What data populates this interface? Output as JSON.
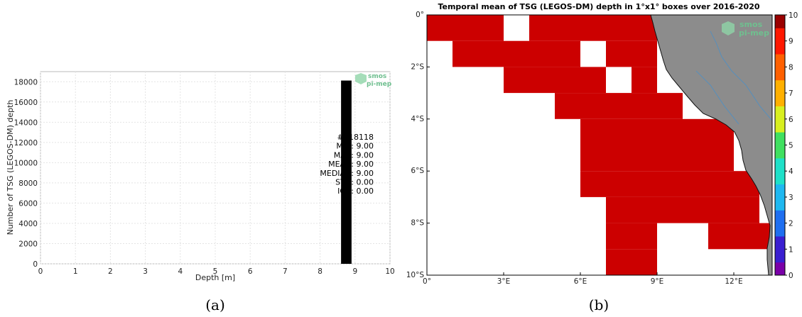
{
  "captions": {
    "a": "(a)",
    "b": "(b)"
  },
  "watermark": {
    "line1": "smos",
    "line2": "pi-mep",
    "color": "#6fbf8f"
  },
  "chart_data": [
    {
      "type": "bar",
      "xlabel": "Depth [m]",
      "ylabel": "Number of TSG (LEGOS-DM) depth",
      "xlim": [
        0,
        10
      ],
      "ylim": [
        0,
        19000
      ],
      "xticks": [
        0,
        1,
        2,
        3,
        4,
        5,
        6,
        7,
        8,
        9,
        10
      ],
      "yticks": [
        0,
        2000,
        4000,
        6000,
        8000,
        10000,
        12000,
        14000,
        16000,
        18000
      ],
      "grid": true,
      "bars": [
        {
          "x_center": 8.75,
          "width": 0.3,
          "value": 18118,
          "color": "#000000"
        }
      ],
      "stats": [
        "#: 18118",
        "MIN: 9.00",
        "MAX: 9.00",
        "MEAN: 9.00",
        "MEDIAN: 9.00",
        "STD: 0.00",
        "IQR: 0.00"
      ]
    },
    {
      "type": "heatmap",
      "title": "Temporal mean of TSG (LEGOS-DM) depth in 1°x1° boxes over 2016-2020",
      "x_range": [
        0,
        13.5
      ],
      "y_range": [
        -10,
        0
      ],
      "xticks": [
        0,
        3,
        6,
        9,
        12
      ],
      "xtick_labels": [
        "0°",
        "3°E",
        "6°E",
        "9°E",
        "12°E"
      ],
      "yticks": [
        0,
        -2,
        -4,
        -6,
        -8,
        -10
      ],
      "ytick_labels": [
        "0°",
        "2°S",
        "4°S",
        "6°S",
        "8°S",
        "10°S"
      ],
      "colorbar": {
        "min": 0,
        "max": 10,
        "ticks": [
          0,
          1,
          2,
          3,
          4,
          5,
          6,
          7,
          8,
          9,
          10
        ]
      },
      "cell_value": 9,
      "cell_color": "#cc0000",
      "land_color": "#8c8c8c",
      "cells": [
        {
          "lat": 0,
          "lon": [
            0,
            1,
            2,
            4,
            5,
            6,
            7,
            8
          ]
        },
        {
          "lat": -1,
          "lon": [
            1,
            2,
            3,
            4,
            5,
            7,
            8
          ]
        },
        {
          "lat": -2,
          "lon": [
            3,
            4,
            5,
            6,
            8
          ]
        },
        {
          "lat": -3,
          "lon": [
            5,
            6,
            7,
            8,
            9
          ]
        },
        {
          "lat": -4,
          "lon": [
            6,
            7,
            8,
            9,
            10,
            11
          ]
        },
        {
          "lat": -5,
          "lon": [
            6,
            7,
            8,
            9,
            10,
            11
          ]
        },
        {
          "lat": -6,
          "lon": [
            6,
            7,
            8,
            9,
            10,
            11,
            12
          ]
        },
        {
          "lat": -7,
          "lon": [
            7,
            8,
            9,
            10,
            11,
            12
          ]
        },
        {
          "lat": -8,
          "lon": [
            7,
            8,
            11,
            12,
            13
          ]
        },
        {
          "lat": -9,
          "lon": [
            7,
            8
          ]
        }
      ]
    }
  ]
}
